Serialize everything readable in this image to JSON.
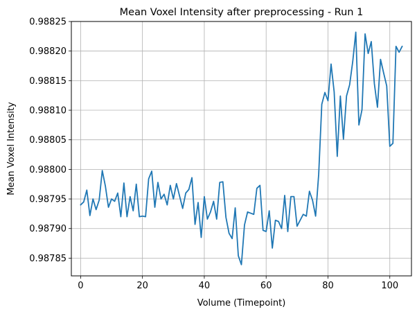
{
  "chart_data": {
    "type": "line",
    "title": "Mean Voxel Intensity after preprocessing - Run 1",
    "xlabel": "Volume (Timepoint)",
    "ylabel": "Mean Voxel Intensity",
    "xlim": [
      -3,
      107
    ],
    "ylim": [
      0.98782,
      0.98825
    ],
    "xticks": [
      0,
      20,
      40,
      60,
      80,
      100
    ],
    "xtick_labels": [
      "0",
      "20",
      "40",
      "60",
      "80",
      "100"
    ],
    "yticks": [
      0.98785,
      0.9879,
      0.98795,
      0.988,
      0.98805,
      0.9881,
      0.98815,
      0.9882,
      0.98825
    ],
    "ytick_labels": [
      "0.98785",
      "0.98790",
      "0.98795",
      "0.98800",
      "0.98805",
      "0.98810",
      "0.98815",
      "0.98820",
      "0.98825"
    ],
    "grid": true,
    "line_color": "#1f77b4",
    "series": [
      {
        "x": [
          0,
          1,
          2,
          3,
          4,
          5,
          6,
          7,
          8,
          9,
          10,
          11,
          12,
          13,
          14,
          15,
          16,
          17,
          18,
          19,
          20,
          21,
          22,
          23,
          24,
          25,
          26,
          27,
          28,
          29,
          30,
          31,
          32,
          33,
          34,
          35,
          36,
          37,
          38,
          39,
          40,
          41,
          42,
          43,
          44,
          45,
          46,
          47,
          48,
          49,
          50,
          51,
          52,
          53,
          54,
          55,
          56,
          57,
          58,
          59,
          60,
          61,
          62,
          63,
          64,
          65,
          66,
          67,
          68,
          69,
          70,
          71,
          72,
          73,
          74,
          75,
          76,
          77,
          78,
          79,
          80,
          81,
          82,
          83,
          84,
          85,
          86,
          87,
          88,
          89,
          90,
          91,
          92,
          93,
          94,
          95,
          96,
          97,
          98,
          99,
          100,
          101,
          102,
          103,
          104
        ],
        "values": [
          0.98794,
          0.987945,
          0.987965,
          0.987922,
          0.98795,
          0.987932,
          0.987948,
          0.987998,
          0.987972,
          0.987936,
          0.98795,
          0.987946,
          0.98796,
          0.98792,
          0.987977,
          0.98792,
          0.987954,
          0.98793,
          0.987975,
          0.98792,
          0.987921,
          0.98792,
          0.987984,
          0.987997,
          0.987936,
          0.987978,
          0.98795,
          0.987958,
          0.98794,
          0.987973,
          0.98795,
          0.987976,
          0.987955,
          0.987934,
          0.98796,
          0.987966,
          0.987986,
          0.987907,
          0.987944,
          0.987885,
          0.987954,
          0.987916,
          0.987928,
          0.987946,
          0.987916,
          0.987978,
          0.987979,
          0.987919,
          0.987892,
          0.987883,
          0.987935,
          0.987854,
          0.987839,
          0.987906,
          0.987928,
          0.987926,
          0.987924,
          0.987968,
          0.987973,
          0.987897,
          0.987895,
          0.98793,
          0.987867,
          0.987914,
          0.987912,
          0.9879,
          0.987956,
          0.987895,
          0.987954,
          0.987954,
          0.987904,
          0.987914,
          0.987924,
          0.987921,
          0.987963,
          0.987948,
          0.987921,
          0.987992,
          0.98811,
          0.98813,
          0.988116,
          0.988178,
          0.988131,
          0.988022,
          0.988124,
          0.988051,
          0.988124,
          0.988143,
          0.988182,
          0.988232,
          0.988075,
          0.988101,
          0.988229,
          0.988196,
          0.988216,
          0.988145,
          0.988105,
          0.988186,
          0.988163,
          0.988141,
          0.988039,
          0.988044,
          0.988208,
          0.988198,
          0.988208
        ]
      }
    ]
  }
}
